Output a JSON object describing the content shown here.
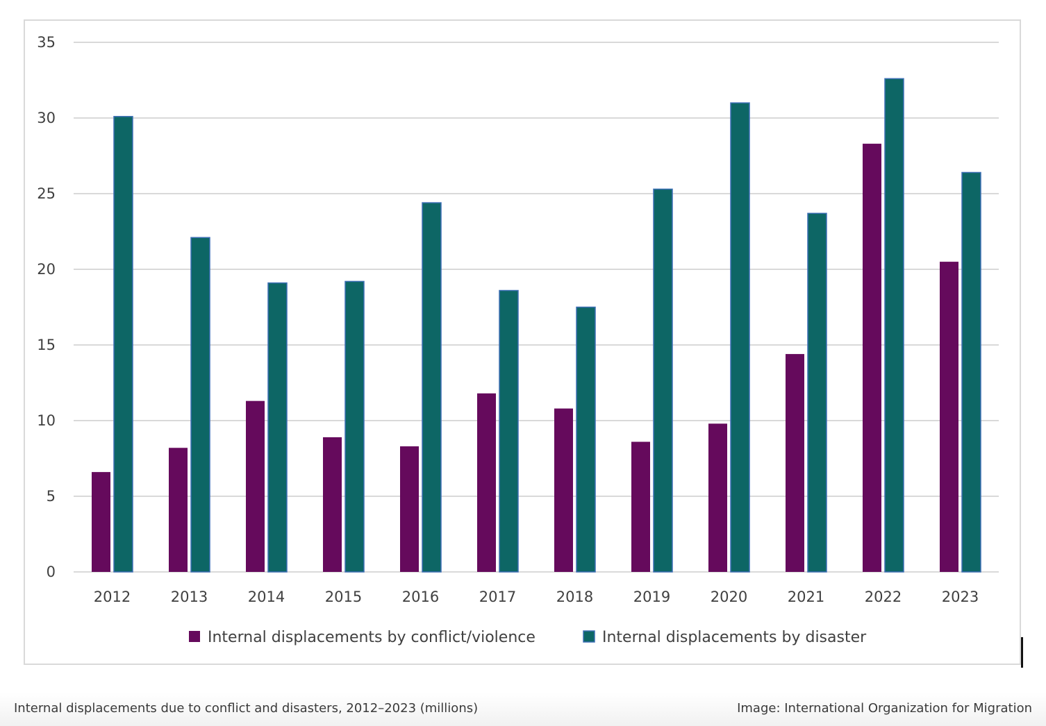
{
  "chart_data": {
    "type": "bar",
    "title": "",
    "xlabel": "",
    "ylabel": "",
    "ylim": [
      0,
      35
    ],
    "yticks": [
      0,
      5,
      10,
      15,
      20,
      25,
      30,
      35
    ],
    "grid": true,
    "legend_position": "bottom",
    "categories": [
      "2012",
      "2013",
      "2014",
      "2015",
      "2016",
      "2017",
      "2018",
      "2019",
      "2020",
      "2021",
      "2022",
      "2023"
    ],
    "series": [
      {
        "name": "Internal displacements by conflict/violence",
        "color": "#650a5c",
        "values": [
          6.6,
          8.2,
          11.3,
          8.9,
          8.3,
          11.8,
          10.8,
          8.6,
          9.8,
          14.4,
          28.3,
          20.5
        ]
      },
      {
        "name": "Internal displacements by disaster",
        "color": "#0d6665",
        "values": [
          30.1,
          22.1,
          19.1,
          19.2,
          24.4,
          18.6,
          17.5,
          25.3,
          31.0,
          23.7,
          32.6,
          26.4
        ]
      }
    ]
  },
  "caption": {
    "text": "Internal displacements due to conflict and disasters, 2012–2023 (millions)",
    "credit": "Image: International Organization for Migration"
  },
  "colors": {
    "conflict": "#650a5c",
    "disaster": "#0d6665",
    "disaster_outline": "#3d6fb5",
    "grid": "#d9d9d9",
    "text": "#404040"
  }
}
